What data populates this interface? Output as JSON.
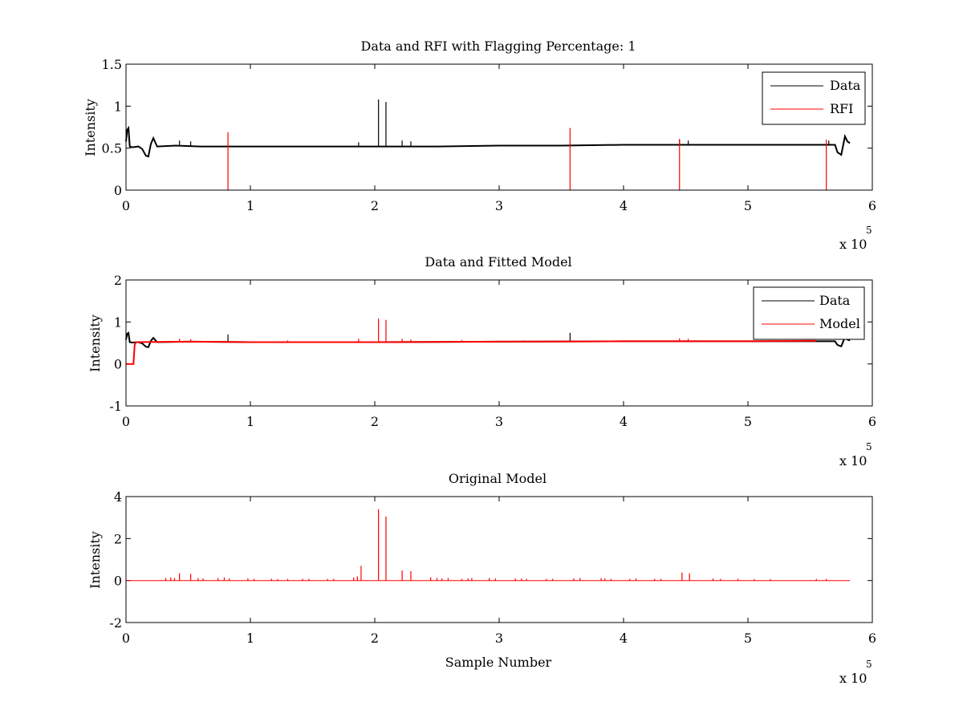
{
  "chart_data": [
    {
      "type": "line",
      "title": "Data and RFI with Flagging Percentage: 1",
      "xlabel": "",
      "ylabel": "Intensity",
      "xlim": [
        0,
        6
      ],
      "ylim": [
        0,
        1.5
      ],
      "xticks": [
        "0",
        "1",
        "2",
        "3",
        "4",
        "5",
        "6"
      ],
      "yticks": [
        "0",
        "0.5",
        "1",
        "1.5"
      ],
      "x_multiplier_label": "x 10",
      "x_multiplier_exponent": "5",
      "legend_position": "top-right",
      "grid": false,
      "series": [
        {
          "name": "Data",
          "color": "#000000",
          "x": [
            0,
            0.01,
            0.02,
            0.03,
            0.05,
            0.1,
            0.13,
            0.16,
            0.18,
            0.2,
            0.22,
            0.25,
            0.4,
            0.6,
            0.8,
            1.0,
            1.5,
            2.0,
            2.5,
            3.0,
            3.5,
            4.0,
            4.5,
            5.0,
            5.5,
            5.6,
            5.7,
            5.72,
            5.75,
            5.78,
            5.8,
            5.82
          ],
          "y": [
            0.58,
            0.72,
            0.74,
            0.52,
            0.51,
            0.52,
            0.49,
            0.41,
            0.4,
            0.55,
            0.62,
            0.52,
            0.53,
            0.52,
            0.52,
            0.52,
            0.52,
            0.52,
            0.52,
            0.53,
            0.53,
            0.54,
            0.54,
            0.54,
            0.54,
            0.54,
            0.54,
            0.45,
            0.42,
            0.64,
            0.58,
            0.56
          ],
          "spikes": [
            {
              "x": 2.03,
              "y": 1.08
            },
            {
              "x": 2.09,
              "y": 1.05
            },
            {
              "x": 0.43,
              "y": 0.59
            },
            {
              "x": 0.52,
              "y": 0.58
            },
            {
              "x": 1.87,
              "y": 0.57
            },
            {
              "x": 2.22,
              "y": 0.59
            },
            {
              "x": 2.29,
              "y": 0.58
            },
            {
              "x": 4.45,
              "y": 0.6
            },
            {
              "x": 4.52,
              "y": 0.59
            },
            {
              "x": 5.65,
              "y": 0.59
            }
          ]
        },
        {
          "name": "RFI",
          "color": "#ff0000",
          "spikes": [
            {
              "x": 0.82,
              "y": 0.69
            },
            {
              "x": 3.57,
              "y": 0.74
            },
            {
              "x": 4.45,
              "y": 0.61
            },
            {
              "x": 5.63,
              "y": 0.6
            }
          ]
        }
      ]
    },
    {
      "type": "line",
      "title": "Data and Fitted Model",
      "xlabel": "",
      "ylabel": "Intensity",
      "xlim": [
        0,
        6
      ],
      "ylim": [
        -1,
        2
      ],
      "xticks": [
        "0",
        "1",
        "2",
        "3",
        "4",
        "5",
        "6"
      ],
      "yticks": [
        "-1",
        "0",
        "1",
        "2"
      ],
      "x_multiplier_label": "x 10",
      "x_multiplier_exponent": "5",
      "legend_position": "top-right",
      "grid": false,
      "series": [
        {
          "name": "Data",
          "color": "#000000",
          "x": [
            0,
            0.01,
            0.02,
            0.03,
            0.05,
            0.1,
            0.13,
            0.16,
            0.18,
            0.2,
            0.22,
            0.25,
            0.5,
            1.0,
            2.0,
            3.0,
            4.0,
            5.0,
            5.5,
            5.7,
            5.72,
            5.75,
            5.78,
            5.8,
            5.82
          ],
          "y": [
            0.58,
            0.72,
            0.74,
            0.52,
            0.51,
            0.52,
            0.49,
            0.41,
            0.4,
            0.55,
            0.62,
            0.52,
            0.53,
            0.52,
            0.52,
            0.53,
            0.54,
            0.54,
            0.54,
            0.54,
            0.45,
            0.42,
            0.64,
            0.58,
            0.56
          ],
          "spikes": [
            {
              "x": 0.82,
              "y": 0.7
            },
            {
              "x": 3.57,
              "y": 0.74
            }
          ]
        },
        {
          "name": "Model",
          "color": "#ff0000",
          "x": [
            0,
            0.06,
            0.07,
            0.08,
            0.5,
            1.0,
            2.0,
            3.0,
            4.0,
            5.0,
            5.5,
            5.55
          ],
          "y": [
            0.0,
            0.0,
            0.45,
            0.52,
            0.53,
            0.52,
            0.52,
            0.53,
            0.54,
            0.54,
            0.55,
            0.55
          ],
          "spikes": [
            {
              "x": 2.03,
              "y": 1.08
            },
            {
              "x": 2.09,
              "y": 1.05
            },
            {
              "x": 0.43,
              "y": 0.6
            },
            {
              "x": 0.52,
              "y": 0.59
            },
            {
              "x": 1.87,
              "y": 0.6
            },
            {
              "x": 2.22,
              "y": 0.6
            },
            {
              "x": 2.29,
              "y": 0.58
            },
            {
              "x": 4.45,
              "y": 0.61
            },
            {
              "x": 4.52,
              "y": 0.6
            },
            {
              "x": 1.3,
              "y": 0.56
            },
            {
              "x": 2.7,
              "y": 0.57
            },
            {
              "x": 3.2,
              "y": 0.56
            }
          ]
        }
      ]
    },
    {
      "type": "line",
      "title": "Original Model",
      "xlabel": "Sample Number",
      "ylabel": "Intensity",
      "xlim": [
        0,
        6
      ],
      "ylim": [
        -2,
        4
      ],
      "xticks": [
        "0",
        "1",
        "2",
        "3",
        "4",
        "5",
        "6"
      ],
      "yticks": [
        "-2",
        "0",
        "2",
        "4"
      ],
      "x_multiplier_label": "x 10",
      "x_multiplier_exponent": "5",
      "legend_position": "none",
      "grid": false,
      "series": [
        {
          "color": "#ff0000",
          "x": [
            0,
            5.82
          ],
          "y": [
            0,
            0
          ],
          "spikes": [
            {
              "x": 2.03,
              "y": 3.4
            },
            {
              "x": 2.09,
              "y": 3.05
            },
            {
              "x": 1.89,
              "y": 0.7
            },
            {
              "x": 2.22,
              "y": 0.48
            },
            {
              "x": 2.29,
              "y": 0.45
            },
            {
              "x": 0.43,
              "y": 0.35
            },
            {
              "x": 0.52,
              "y": 0.32
            },
            {
              "x": 4.47,
              "y": 0.38
            },
            {
              "x": 4.53,
              "y": 0.35
            },
            {
              "x": 0.32,
              "y": 0.12
            },
            {
              "x": 0.36,
              "y": 0.15
            },
            {
              "x": 0.39,
              "y": 0.12
            },
            {
              "x": 0.58,
              "y": 0.12
            },
            {
              "x": 0.62,
              "y": 0.1
            },
            {
              "x": 0.74,
              "y": 0.12
            },
            {
              "x": 0.79,
              "y": 0.15
            },
            {
              "x": 0.83,
              "y": 0.1
            },
            {
              "x": 0.98,
              "y": 0.1
            },
            {
              "x": 1.03,
              "y": 0.08
            },
            {
              "x": 1.17,
              "y": 0.08
            },
            {
              "x": 1.22,
              "y": 0.07
            },
            {
              "x": 1.3,
              "y": 0.08
            },
            {
              "x": 1.42,
              "y": 0.08
            },
            {
              "x": 1.47,
              "y": 0.08
            },
            {
              "x": 1.62,
              "y": 0.08
            },
            {
              "x": 1.67,
              "y": 0.08
            },
            {
              "x": 1.83,
              "y": 0.15
            },
            {
              "x": 1.86,
              "y": 0.2
            },
            {
              "x": 2.45,
              "y": 0.15
            },
            {
              "x": 2.5,
              "y": 0.12
            },
            {
              "x": 2.54,
              "y": 0.1
            },
            {
              "x": 2.59,
              "y": 0.12
            },
            {
              "x": 2.7,
              "y": 0.08
            },
            {
              "x": 2.75,
              "y": 0.1
            },
            {
              "x": 2.78,
              "y": 0.12
            },
            {
              "x": 2.92,
              "y": 0.12
            },
            {
              "x": 2.97,
              "y": 0.1
            },
            {
              "x": 3.13,
              "y": 0.1
            },
            {
              "x": 3.18,
              "y": 0.1
            },
            {
              "x": 3.22,
              "y": 0.08
            },
            {
              "x": 3.38,
              "y": 0.08
            },
            {
              "x": 3.43,
              "y": 0.08
            },
            {
              "x": 3.6,
              "y": 0.1
            },
            {
              "x": 3.65,
              "y": 0.12
            },
            {
              "x": 3.82,
              "y": 0.12
            },
            {
              "x": 3.85,
              "y": 0.1
            },
            {
              "x": 3.9,
              "y": 0.08
            },
            {
              "x": 4.05,
              "y": 0.08
            },
            {
              "x": 4.1,
              "y": 0.1
            },
            {
              "x": 4.25,
              "y": 0.08
            },
            {
              "x": 4.3,
              "y": 0.08
            },
            {
              "x": 4.72,
              "y": 0.1
            },
            {
              "x": 4.78,
              "y": 0.08
            },
            {
              "x": 4.92,
              "y": 0.08
            },
            {
              "x": 5.05,
              "y": 0.07
            },
            {
              "x": 5.18,
              "y": 0.07
            },
            {
              "x": 5.55,
              "y": 0.08
            },
            {
              "x": 5.63,
              "y": 0.08
            }
          ]
        }
      ]
    }
  ]
}
